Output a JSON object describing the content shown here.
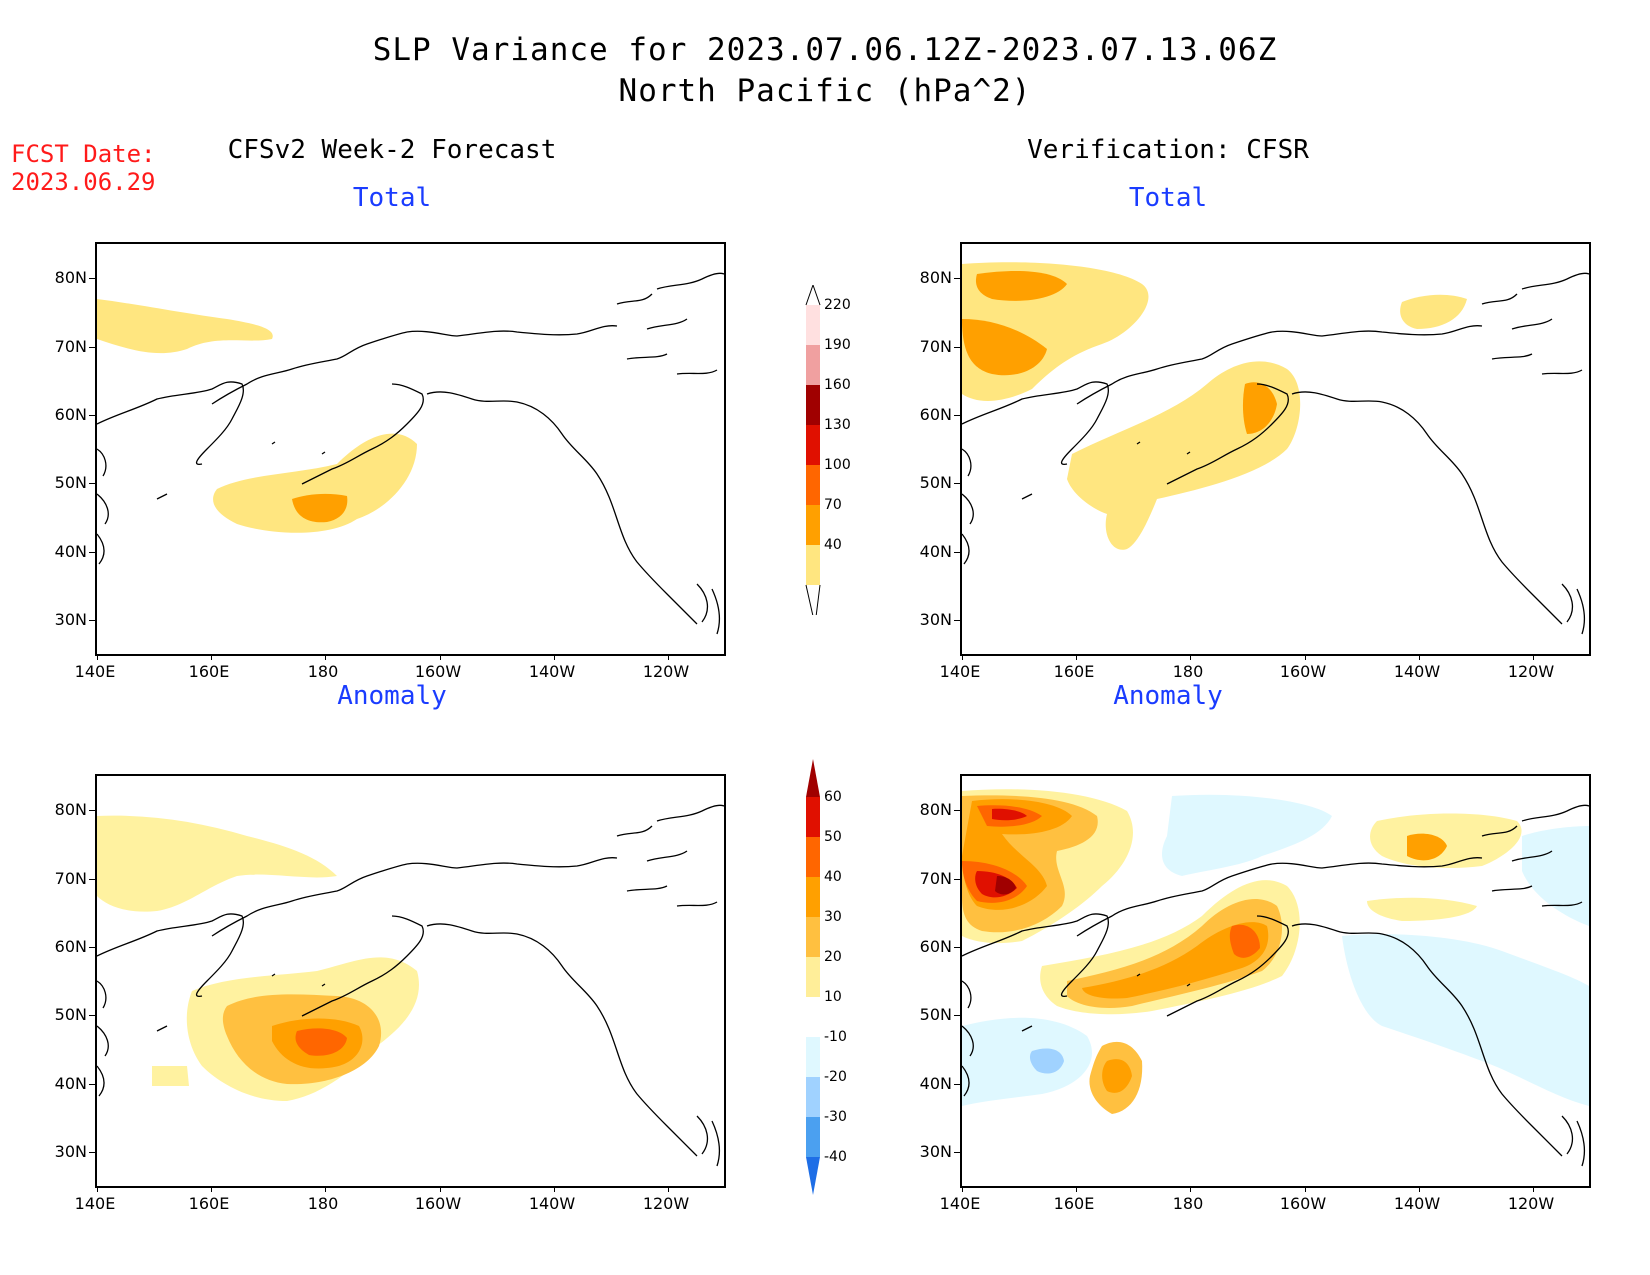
{
  "header": {
    "title_line1": "SLP Variance for 2023.07.06.12Z-2023.07.13.06Z",
    "title_line2": "North Pacific (hPa^2)",
    "fcst_label": "FCST Date:",
    "fcst_date": "2023.06.29"
  },
  "columns": {
    "left": "CFSv2 Week-2 Forecast",
    "right": "Verification: CFSR"
  },
  "panels": {
    "forecast_total": "Total",
    "verification_total": "Total",
    "forecast_anomaly": "Anomaly",
    "verification_anomaly": "Anomaly"
  },
  "axes": {
    "lat_labels": [
      "80N",
      "70N",
      "60N",
      "50N",
      "40N",
      "30N"
    ],
    "lon_labels": [
      "140E",
      "160E",
      "180",
      "160W",
      "140W",
      "120W"
    ]
  },
  "colorbars": {
    "total": {
      "levels": [
        "40",
        "70",
        "100",
        "130",
        "160",
        "190",
        "220"
      ],
      "colors": [
        "#ffe680",
        "#ffa000",
        "#ff6600",
        "#e01000",
        "#a00000",
        "#f0a0a0",
        "#ffe0e0"
      ]
    },
    "anomaly": {
      "levels": [
        "60",
        "50",
        "40",
        "30",
        "20",
        "10",
        "-10",
        "-20",
        "-30",
        "-40"
      ],
      "colors": [
        "#a00000",
        "#e01000",
        "#ff6600",
        "#ffa000",
        "#ffc040",
        "#ffee99",
        "#ffffff",
        "#dff8ff",
        "#a0d2ff",
        "#4ba0f0",
        "#1e6ee6"
      ]
    }
  },
  "map_colors": {
    "c1": "#ffe680",
    "c2": "#ffc040",
    "c3": "#ffa000",
    "c4": "#ff6600",
    "c5": "#e01000",
    "c6": "#a00000",
    "light_yellow": "#fff2a0",
    "light_blue": "#dff8ff",
    "mid_blue": "#a0d2ff"
  }
}
